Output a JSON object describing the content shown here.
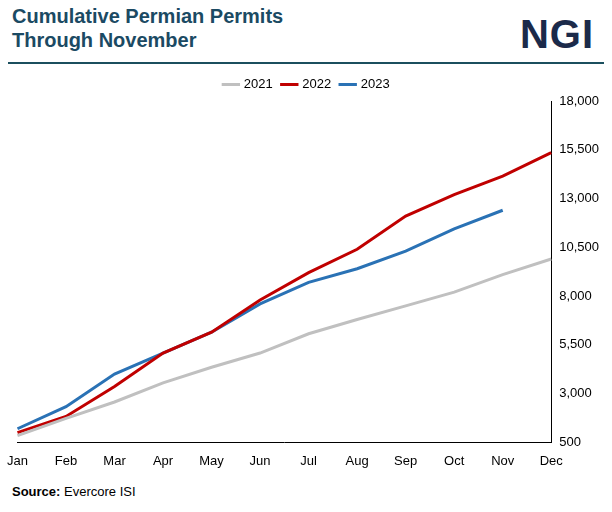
{
  "chart_data": {
    "type": "line",
    "title": "Cumulative Permian Permits Through November",
    "logo": "NGI",
    "source_label": "Source:",
    "source": "Evercore ISI",
    "categories": [
      "Jan",
      "Feb",
      "Mar",
      "Apr",
      "May",
      "Jun",
      "Jul",
      "Aug",
      "Sep",
      "Oct",
      "Nov",
      "Dec"
    ],
    "series": [
      {
        "name": "2021",
        "color": "#c0c0c0",
        "values": [
          850,
          1730,
          2570,
          3550,
          4350,
          5080,
          6070,
          6800,
          7500,
          8200,
          9100,
          9900
        ]
      },
      {
        "name": "2022",
        "color": "#c00000",
        "values": [
          1000,
          1830,
          3360,
          5080,
          6150,
          7800,
          9200,
          10400,
          12100,
          13200,
          14150,
          15350
        ]
      },
      {
        "name": "2023",
        "color": "#2a72b5",
        "values": [
          1200,
          2330,
          4000,
          5080,
          6150,
          7600,
          8700,
          9400,
          10300,
          11450,
          12400,
          null
        ]
      }
    ],
    "ylim": [
      500,
      18000
    ],
    "yticks": [
      500,
      {
        "value": 3000,
        "label": "3,000"
      },
      {
        "value": 5500,
        "label": "5,500"
      },
      {
        "value": 8000,
        "label": "8,000"
      },
      {
        "value": 10500,
        "label": "10,500"
      },
      {
        "value": 13000,
        "label": "13,000"
      },
      {
        "value": 15500,
        "label": "15,500"
      },
      {
        "value": 18000,
        "label": "18,000"
      }
    ],
    "grid": false,
    "legend": "top"
  }
}
